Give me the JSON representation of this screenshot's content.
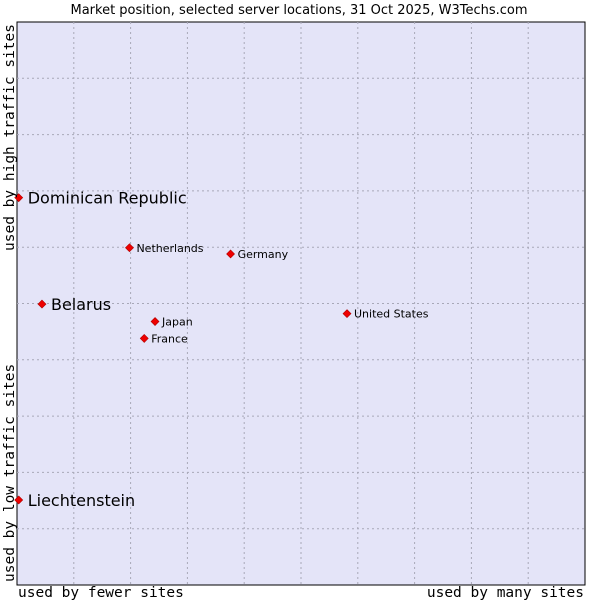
{
  "chart_data": {
    "type": "scatter",
    "title": "Market position, selected server locations, 31 Oct 2025, W3Techs.com",
    "xlabel_left": "used by fewer sites",
    "xlabel_right": "used by many sites",
    "ylabel_bottom": "used by low traffic sites",
    "ylabel_top": "used by high traffic sites",
    "xlim": [
      0,
      100
    ],
    "ylim": [
      0,
      100
    ],
    "grid": true,
    "colors": {
      "background": "#e4e4f8",
      "marker": "#ee0000",
      "frame": "#000000"
    },
    "points": [
      {
        "name": "Dominican Republic",
        "x": 0.3,
        "y": 68.8,
        "label_size": "large"
      },
      {
        "name": "Netherlands",
        "x": 19.8,
        "y": 59.9,
        "label_size": "small"
      },
      {
        "name": "Germany",
        "x": 37.6,
        "y": 58.8,
        "label_size": "small"
      },
      {
        "name": "Belarus",
        "x": 4.4,
        "y": 49.9,
        "label_size": "large"
      },
      {
        "name": "United States",
        "x": 58.1,
        "y": 48.2,
        "label_size": "small"
      },
      {
        "name": "Japan",
        "x": 24.3,
        "y": 46.8,
        "label_size": "small"
      },
      {
        "name": "France",
        "x": 22.4,
        "y": 43.8,
        "label_size": "small"
      },
      {
        "name": "Liechtenstein",
        "x": 0.3,
        "y": 15.1,
        "label_size": "large"
      }
    ]
  }
}
